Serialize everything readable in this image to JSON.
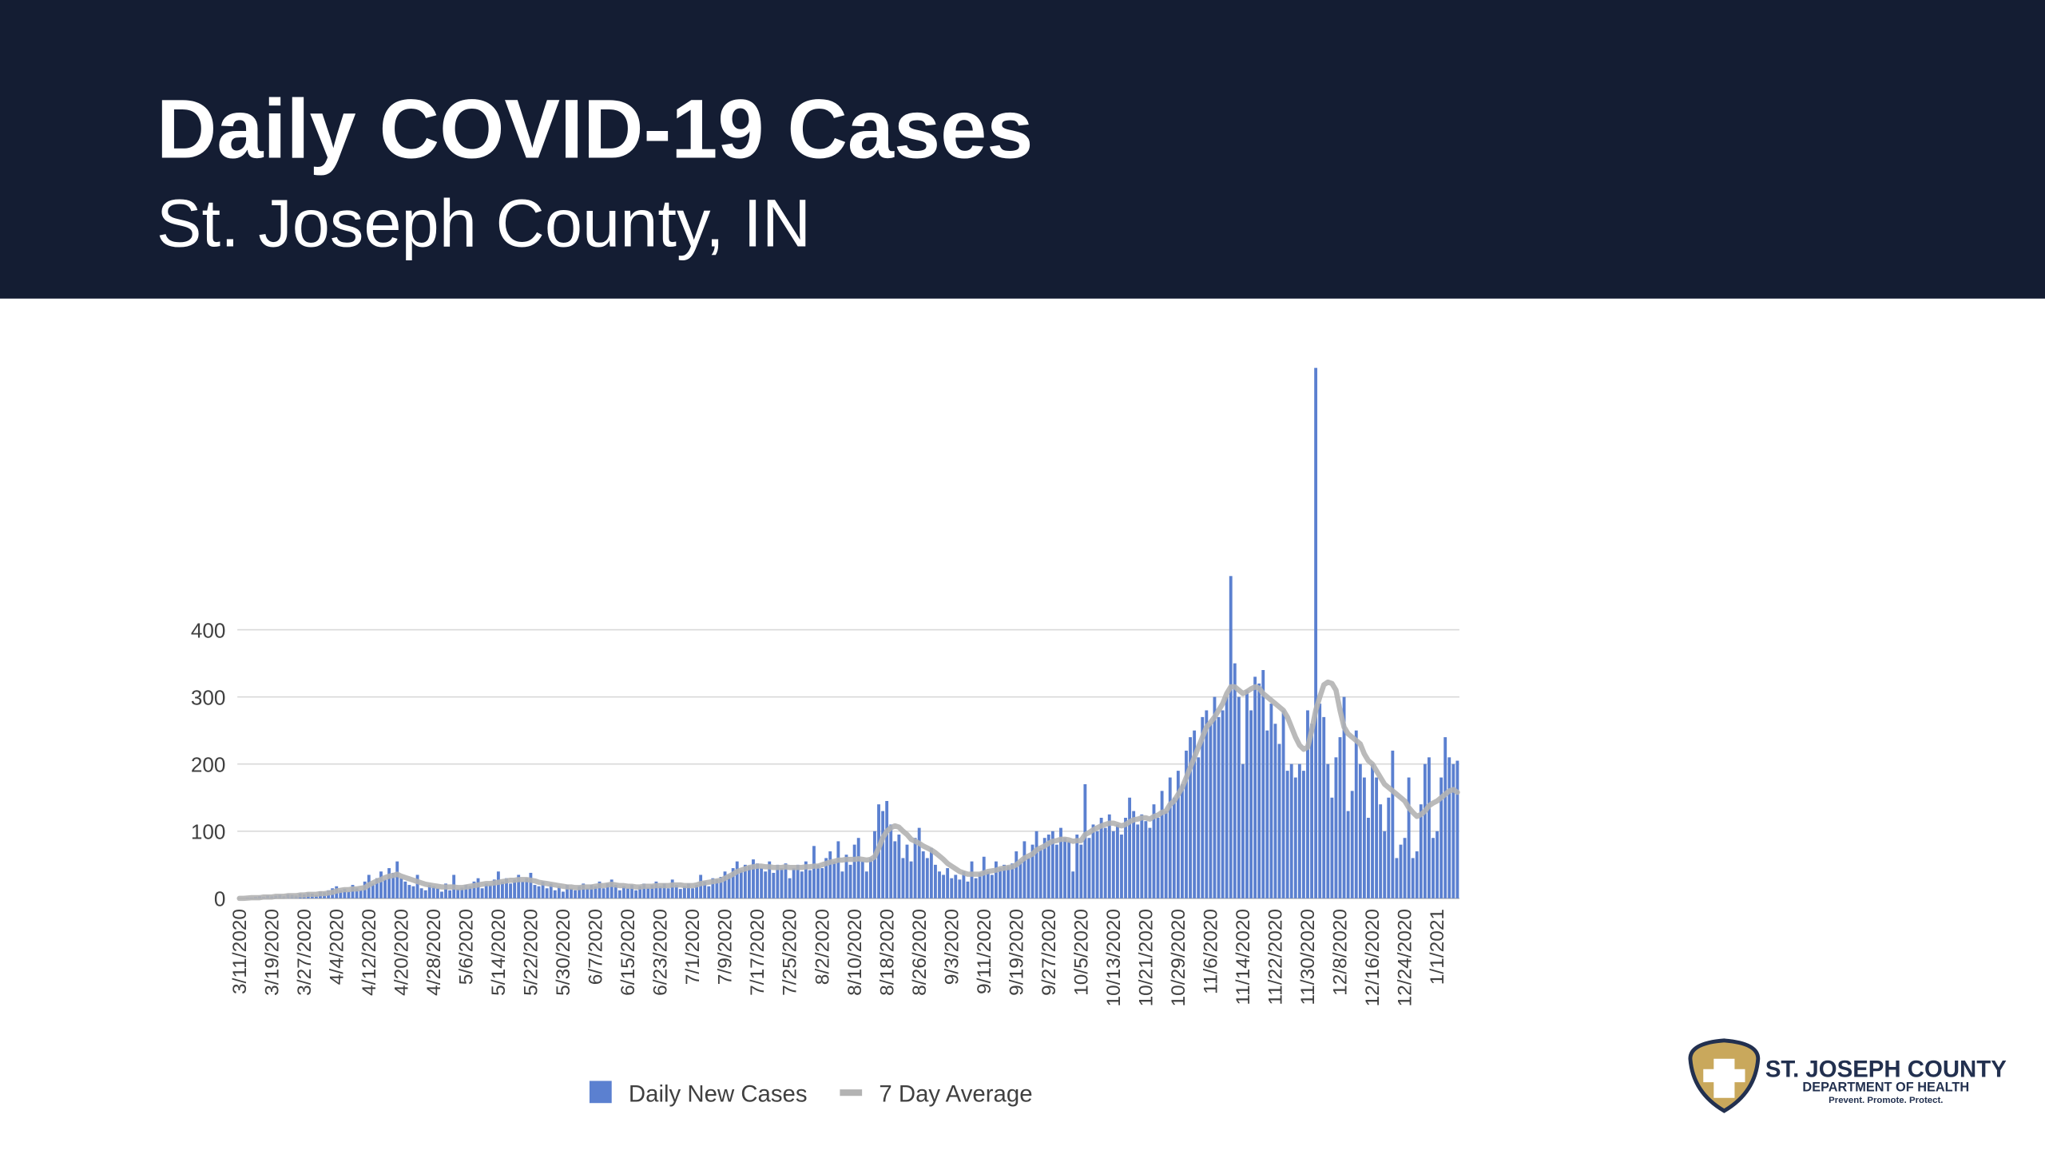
{
  "header": {
    "title": "Daily COVID-19 Cases",
    "subtitle": "St. Joseph County, IN"
  },
  "logo": {
    "name": "St. Joseph County",
    "department": "Department of Health",
    "motto": "Prevent. Promote. Protect."
  },
  "chart_data": {
    "type": "bar",
    "categories": [
      "3/11/2020",
      null,
      null,
      null,
      null,
      null,
      null,
      null,
      "3/19/2020",
      null,
      null,
      null,
      null,
      null,
      null,
      null,
      "3/27/2020",
      null,
      null,
      null,
      null,
      null,
      null,
      null,
      "4/4/2020",
      null,
      null,
      null,
      null,
      null,
      null,
      null,
      "4/12/2020",
      null,
      null,
      null,
      null,
      null,
      null,
      null,
      "4/20/2020",
      null,
      null,
      null,
      null,
      null,
      null,
      null,
      "4/28/2020",
      null,
      null,
      null,
      null,
      null,
      null,
      null,
      "5/6/2020",
      null,
      null,
      null,
      null,
      null,
      null,
      null,
      "5/14/2020",
      null,
      null,
      null,
      null,
      null,
      null,
      null,
      "5/22/2020",
      null,
      null,
      null,
      null,
      null,
      null,
      null,
      "5/30/2020",
      null,
      null,
      null,
      null,
      null,
      null,
      null,
      "6/7/2020",
      null,
      null,
      null,
      null,
      null,
      null,
      null,
      "6/15/2020",
      null,
      null,
      null,
      null,
      null,
      null,
      null,
      "6/23/2020",
      null,
      null,
      null,
      null,
      null,
      null,
      null,
      "7/1/2020",
      null,
      null,
      null,
      null,
      null,
      null,
      null,
      "7/9/2020",
      null,
      null,
      null,
      null,
      null,
      null,
      null,
      "7/17/2020",
      null,
      null,
      null,
      null,
      null,
      null,
      null,
      "7/25/2020",
      null,
      null,
      null,
      null,
      null,
      null,
      null,
      "8/2/2020",
      null,
      null,
      null,
      null,
      null,
      null,
      null,
      "8/10/2020",
      null,
      null,
      null,
      null,
      null,
      null,
      null,
      "8/18/2020",
      null,
      null,
      null,
      null,
      null,
      null,
      null,
      "8/26/2020",
      null,
      null,
      null,
      null,
      null,
      null,
      null,
      "9/3/2020",
      null,
      null,
      null,
      null,
      null,
      null,
      null,
      "9/11/2020",
      null,
      null,
      null,
      null,
      null,
      null,
      null,
      "9/19/2020",
      null,
      null,
      null,
      null,
      null,
      null,
      null,
      "9/27/2020",
      null,
      null,
      null,
      null,
      null,
      null,
      null,
      "10/5/2020",
      null,
      null,
      null,
      null,
      null,
      null,
      null,
      "10/13/2020",
      null,
      null,
      null,
      null,
      null,
      null,
      null,
      "10/21/2020",
      null,
      null,
      null,
      null,
      null,
      null,
      null,
      "10/29/2020",
      null,
      null,
      null,
      null,
      null,
      null,
      null,
      "11/6/2020",
      null,
      null,
      null,
      null,
      null,
      null,
      null,
      "11/14/2020",
      null,
      null,
      null,
      null,
      null,
      null,
      null,
      "11/22/2020",
      null,
      null,
      null,
      null,
      null,
      null,
      null,
      "11/30/2020",
      null,
      null,
      null,
      null,
      null,
      null,
      null,
      "12/8/2020",
      null,
      null,
      null,
      null,
      null,
      null,
      null,
      "12/16/2020",
      null,
      null,
      null,
      null,
      null,
      null,
      null,
      "12/24/2020",
      null,
      null,
      null,
      null,
      null,
      null,
      null,
      "1/1/2021",
      null,
      null,
      null,
      null,
      null
    ],
    "series": [
      {
        "name": "Daily New Cases",
        "color": "#5b80d0",
        "values": [
          0,
          0,
          1,
          1,
          2,
          3,
          2,
          4,
          3,
          4,
          5,
          3,
          6,
          5,
          4,
          7,
          6,
          8,
          7,
          5,
          10,
          9,
          12,
          15,
          18,
          12,
          14,
          10,
          20,
          15,
          12,
          25,
          35,
          22,
          30,
          40,
          28,
          45,
          38,
          55,
          30,
          25,
          20,
          18,
          35,
          15,
          12,
          20,
          18,
          15,
          10,
          22,
          12,
          35,
          14,
          16,
          20,
          18,
          25,
          30,
          15,
          22,
          20,
          28,
          40,
          25,
          30,
          22,
          28,
          35,
          25,
          30,
          38,
          20,
          18,
          25,
          15,
          22,
          12,
          18,
          10,
          20,
          15,
          12,
          18,
          22,
          15,
          20,
          18,
          25,
          15,
          22,
          28,
          20,
          12,
          18,
          15,
          20,
          12,
          18,
          22,
          16,
          20,
          25,
          18,
          22,
          15,
          28,
          20,
          14,
          18,
          22,
          15,
          20,
          35,
          25,
          18,
          30,
          28,
          32,
          40,
          35,
          45,
          55,
          42,
          50,
          48,
          58,
          52,
          45,
          40,
          55,
          38,
          50,
          45,
          52,
          30,
          45,
          50,
          40,
          55,
          42,
          78,
          50,
          45,
          60,
          70,
          55,
          85,
          40,
          65,
          50,
          80,
          90,
          55,
          40,
          60,
          100,
          140,
          130,
          145,
          110,
          85,
          95,
          60,
          80,
          55,
          90,
          105,
          70,
          60,
          75,
          50,
          40,
          35,
          45,
          30,
          35,
          28,
          40,
          25,
          55,
          30,
          38,
          62,
          40,
          35,
          55,
          45,
          50,
          48,
          52,
          70,
          55,
          85,
          60,
          80,
          100,
          75,
          90,
          95,
          100,
          80,
          105,
          90,
          85,
          40,
          95,
          80,
          170,
          90,
          110,
          100,
          120,
          105,
          125,
          100,
          110,
          95,
          120,
          150,
          130,
          110,
          125,
          115,
          105,
          140,
          120,
          160,
          130,
          180,
          150,
          190,
          170,
          220,
          240,
          250,
          210,
          270,
          280,
          260,
          300,
          270,
          280,
          300,
          480,
          350,
          300,
          200,
          310,
          280,
          330,
          320,
          340,
          250,
          290,
          260,
          230,
          280,
          190,
          200,
          180,
          200,
          190,
          280,
          260,
          790,
          290,
          270,
          200,
          150,
          210,
          240,
          300,
          130,
          160,
          250,
          200,
          180,
          120,
          200,
          180,
          140,
          100,
          150,
          220,
          60,
          80,
          90,
          180,
          60,
          70,
          140,
          200,
          210,
          90,
          100,
          180,
          240,
          210,
          200,
          205
        ]
      },
      {
        "name": "7 Day Average",
        "color": "#b3b3b3",
        "type": "line",
        "values": [
          0,
          0,
          0.5,
          1,
          1,
          1,
          2,
          2,
          2,
          3,
          3,
          3,
          4,
          4,
          4,
          5,
          5,
          6,
          6,
          6,
          7,
          7,
          8,
          9,
          11,
          12,
          13,
          13,
          14,
          14,
          15,
          16,
          20,
          23,
          26,
          28,
          31,
          33,
          34,
          36,
          33,
          31,
          29,
          27,
          25,
          23,
          21,
          20,
          19,
          18,
          17,
          17,
          17,
          17,
          16,
          16,
          17,
          18,
          19,
          20,
          21,
          22,
          22,
          23,
          24,
          25,
          26,
          27,
          27,
          28,
          28,
          28,
          27,
          26,
          24,
          23,
          22,
          21,
          20,
          19,
          18,
          17,
          17,
          16,
          16,
          17,
          17,
          17,
          18,
          19,
          19,
          20,
          21,
          20,
          19,
          19,
          18,
          18,
          17,
          17,
          18,
          18,
          18,
          19,
          19,
          19,
          19,
          20,
          20,
          20,
          19,
          19,
          19,
          20,
          22,
          23,
          24,
          25,
          26,
          27,
          30,
          33,
          36,
          40,
          42,
          44,
          46,
          47,
          48,
          48,
          47,
          47,
          46,
          46,
          46,
          47,
          46,
          46,
          46,
          46,
          47,
          47,
          48,
          48,
          50,
          52,
          54,
          55,
          57,
          57,
          58,
          58,
          58,
          59,
          58,
          57,
          58,
          62,
          75,
          90,
          100,
          105,
          108,
          106,
          100,
          95,
          88,
          85,
          82,
          78,
          75,
          72,
          68,
          63,
          58,
          52,
          48,
          44,
          40,
          38,
          36,
          36,
          36,
          36,
          38,
          40,
          41,
          42,
          44,
          45,
          46,
          47,
          50,
          55,
          60,
          63,
          66,
          72,
          75,
          78,
          82,
          85,
          86,
          88,
          88,
          87,
          85,
          86,
          86,
          95,
          98,
          102,
          105,
          108,
          110,
          112,
          112,
          110,
          108,
          110,
          114,
          117,
          118,
          120,
          120,
          118,
          122,
          124,
          128,
          130,
          140,
          145,
          155,
          165,
          180,
          195,
          210,
          225,
          240,
          255,
          262,
          270,
          280,
          290,
          305,
          315,
          315,
          310,
          305,
          308,
          312,
          315,
          313,
          305,
          300,
          295,
          290,
          285,
          280,
          270,
          255,
          240,
          228,
          222,
          225,
          250,
          280,
          300,
          318,
          322,
          320,
          310,
          280,
          255,
          245,
          240,
          235,
          230,
          215,
          205,
          200,
          190,
          180,
          170,
          165,
          160,
          155,
          150,
          145,
          135,
          128,
          122,
          125,
          130,
          138,
          142,
          145,
          150,
          155,
          160,
          162,
          158
        ]
      }
    ],
    "ylim": [
      0,
      800
    ],
    "yticks": [
      0,
      100,
      200,
      300,
      400
    ],
    "grid": true,
    "legend": "bottom"
  }
}
